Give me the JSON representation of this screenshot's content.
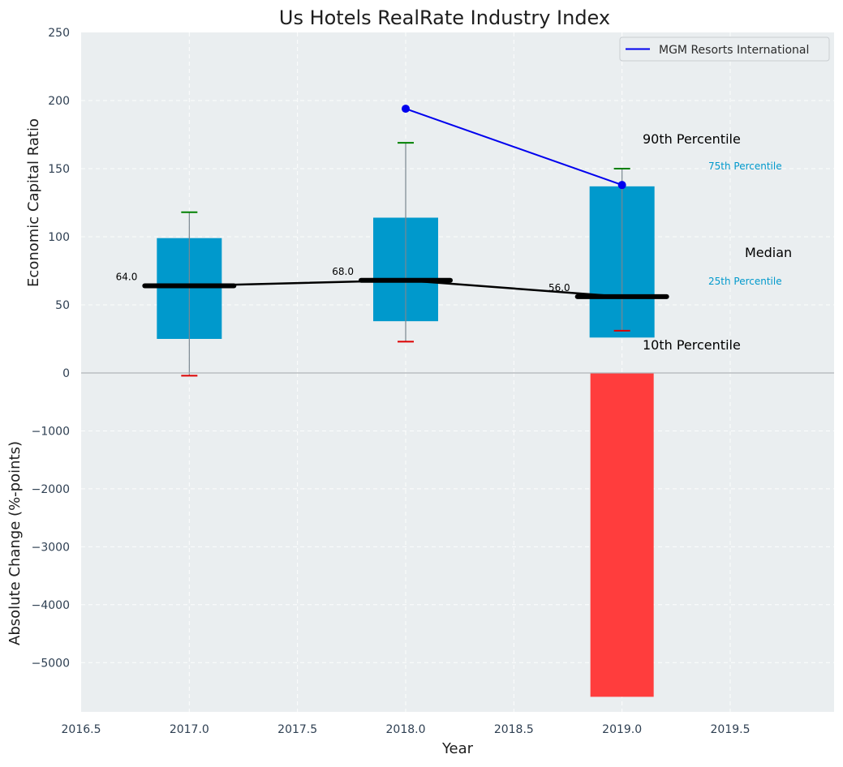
{
  "chart_data": {
    "title": "Us Hotels RealRate Industry Index",
    "xlabel": "Year",
    "x_ticks": [
      "2016.5",
      "2017.0",
      "2017.5",
      "2018.0",
      "2018.5",
      "2019.0",
      "2019.5"
    ],
    "xlim": [
      2016.5,
      2019.98
    ],
    "top_panel": {
      "type": "box",
      "ylabel": "Economic Capital Ratio",
      "ylim": [
        0,
        250
      ],
      "y_ticks": [
        "0",
        "50",
        "100",
        "150",
        "200",
        "250"
      ],
      "grid": true,
      "boxes": [
        {
          "x": 2017.0,
          "p10": -2,
          "p25": 25,
          "median": 64,
          "p75": 99,
          "p90": 118,
          "median_label": "64.0"
        },
        {
          "x": 2018.0,
          "p10": 23,
          "p25": 38,
          "median": 68,
          "p75": 114,
          "p90": 169,
          "median_label": "68.0"
        },
        {
          "x": 2019.0,
          "p10": 31,
          "p25": 26,
          "median": 56,
          "p75": 137,
          "p90": 150,
          "median_label": "56.0"
        }
      ],
      "company_series": {
        "name": "MGM Resorts International",
        "x": [
          2018.0,
          2019.0
        ],
        "values": [
          194,
          138
        ],
        "color": "#0000ee"
      },
      "annotations": {
        "p90": "90th Percentile",
        "p75": "75th Percentile",
        "median": "Median",
        "p25": "25th Percentile",
        "p10": "10th Percentile"
      },
      "colors": {
        "box": "#0099cc",
        "median": "#000000",
        "p90_cap": "#008000",
        "p10_cap": "#dd0000",
        "background": "#eaeef0"
      }
    },
    "bottom_panel": {
      "type": "bar",
      "ylabel": "Absolute Change (%-points)",
      "ylim": [
        -5850,
        0
      ],
      "y_ticks": [
        "0",
        "−1000",
        "−2000",
        "−3000",
        "−4000",
        "−5000"
      ],
      "grid": true,
      "bars": [
        {
          "x": 2019.0,
          "value": -5590
        }
      ],
      "colors": {
        "bar": "#ff3d3d"
      }
    },
    "legend": {
      "placement": "top-right",
      "entries": [
        "MGM Resorts International"
      ]
    }
  }
}
